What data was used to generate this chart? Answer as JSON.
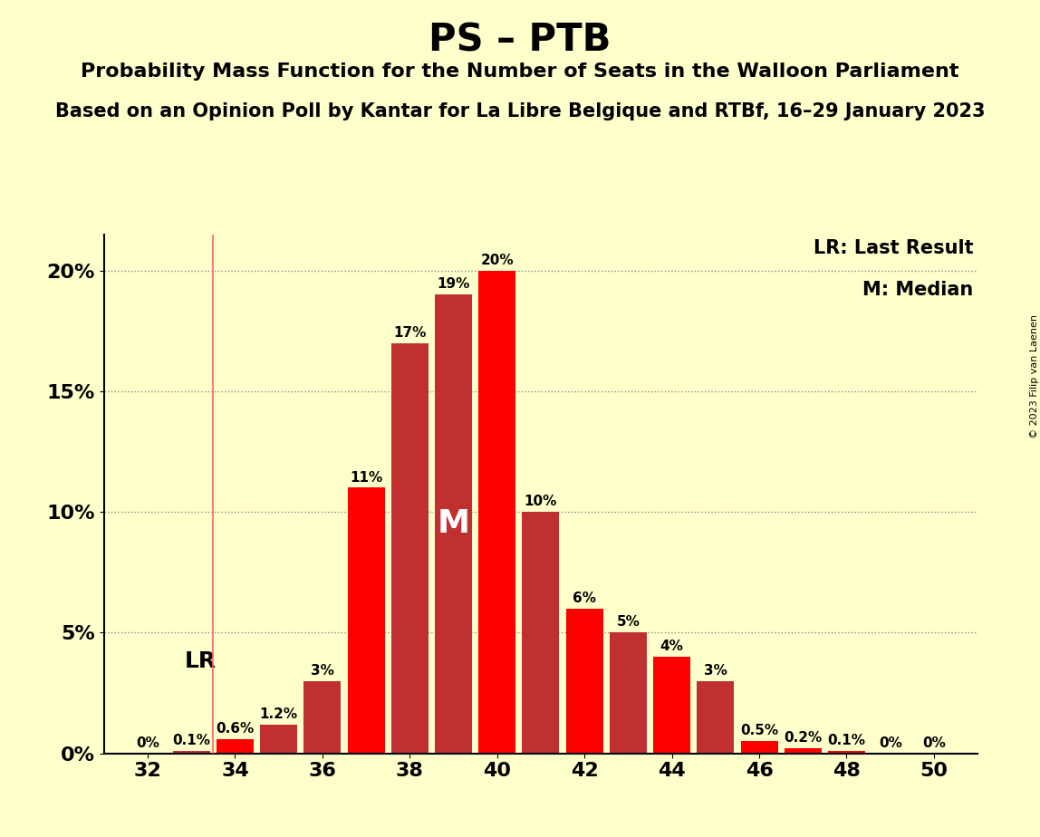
{
  "title": "PS – PTB",
  "subtitle1": "Probability Mass Function for the Number of Seats in the Walloon Parliament",
  "subtitle2": "Based on an Opinion Poll by Kantar for La Libre Belgique and RTBf, 16–29 January 2023",
  "copyright": "© 2023 Filip van Laenen",
  "legend_lr": "LR: Last Result",
  "legend_m": "M: Median",
  "seats": [
    32,
    33,
    34,
    35,
    36,
    37,
    38,
    39,
    40,
    41,
    42,
    43,
    44,
    45,
    46,
    47,
    48,
    49,
    50
  ],
  "values": [
    0.0,
    0.1,
    0.6,
    1.2,
    3.0,
    11.0,
    17.0,
    19.0,
    20.0,
    10.0,
    6.0,
    5.0,
    4.0,
    3.0,
    0.5,
    0.2,
    0.1,
    0.0,
    0.0
  ],
  "bar_colors": [
    "#FF0000",
    "#CC2222",
    "#FF0000",
    "#BB3333",
    "#BB3333",
    "#FF0000",
    "#BB3333",
    "#CC3333",
    "#FF0000",
    "#BB3333",
    "#FF0000",
    "#BB3333",
    "#FF0000",
    "#BB3333",
    "#FF0000",
    "#FF0000",
    "#FF0000",
    "#FF0000",
    "#FF0000"
  ],
  "lr_seat": 34,
  "median_seat": 39,
  "background_color": "#FFFFCC",
  "ylabel_ticks": [
    0,
    5,
    10,
    15,
    20
  ],
  "ytick_labels": [
    "0%",
    "5%",
    "10%",
    "15%",
    "20%"
  ],
  "xtick_positions": [
    32,
    34,
    36,
    38,
    40,
    42,
    44,
    46,
    48,
    50
  ],
  "ylim": [
    0,
    21.5
  ],
  "bar_width": 0.85,
  "title_fontsize": 30,
  "subtitle1_fontsize": 16,
  "subtitle2_fontsize": 15,
  "tick_fontsize": 16,
  "label_fontsize": 11,
  "legend_fontsize": 15
}
